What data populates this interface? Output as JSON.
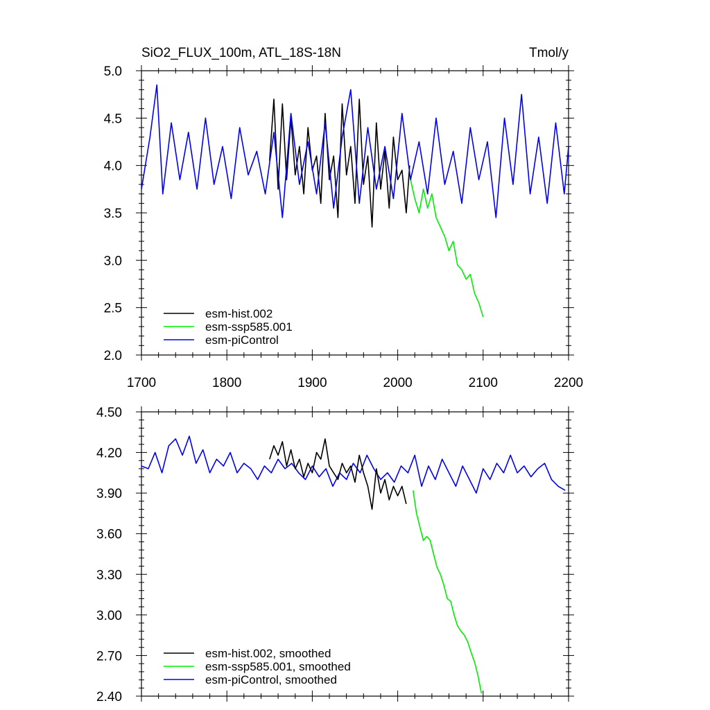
{
  "chart_data": [
    {
      "type": "line",
      "title": "SiO2_FLUX_100m, ATL_18S-18N",
      "units": "Tmol/y",
      "xlabel": "",
      "ylabel": "",
      "xlim": [
        1700,
        2200
      ],
      "ylim": [
        2.0,
        5.0
      ],
      "x_ticks": [
        1700,
        1800,
        1900,
        2000,
        2100,
        2200
      ],
      "x_tick_labels": [
        "1700",
        "1800",
        "1900",
        "2000",
        "2100",
        "2200"
      ],
      "y_ticks": [
        2.0,
        2.5,
        3.0,
        3.5,
        4.0,
        4.5,
        5.0
      ],
      "y_tick_labels": [
        "2.0",
        "2.5",
        "3.0",
        "3.5",
        "4.0",
        "4.5",
        "5.0"
      ],
      "legend_position": "bottom-left",
      "series": [
        {
          "name": "esm-hist.002",
          "color": "#000000",
          "x": [
            1850,
            1855,
            1860,
            1865,
            1870,
            1875,
            1880,
            1885,
            1890,
            1895,
            1900,
            1905,
            1910,
            1915,
            1920,
            1925,
            1930,
            1935,
            1940,
            1945,
            1950,
            1955,
            1960,
            1965,
            1970,
            1975,
            1980,
            1985,
            1990,
            1995,
            2000,
            2005,
            2010,
            2014
          ],
          "values": [
            4.05,
            4.7,
            3.75,
            4.65,
            3.85,
            4.5,
            3.9,
            4.2,
            3.7,
            4.4,
            3.95,
            4.1,
            3.6,
            4.55,
            3.85,
            4.1,
            3.45,
            4.65,
            3.9,
            4.2,
            3.6,
            4.7,
            3.8,
            4.1,
            3.35,
            4.45,
            3.75,
            4.15,
            3.55,
            4.3,
            3.85,
            3.95,
            3.5,
            4.0
          ]
        },
        {
          "name": "esm-ssp585.001",
          "color": "#00ee00",
          "x": [
            2015,
            2020,
            2025,
            2030,
            2035,
            2040,
            2045,
            2050,
            2055,
            2060,
            2065,
            2070,
            2075,
            2080,
            2085,
            2090,
            2095,
            2100
          ],
          "values": [
            3.85,
            3.65,
            3.5,
            3.75,
            3.55,
            3.7,
            3.45,
            3.35,
            3.25,
            3.1,
            3.2,
            2.95,
            2.9,
            2.8,
            2.85,
            2.65,
            2.55,
            2.4
          ]
        },
        {
          "name": "esm-piControl",
          "color": "#0000ee",
          "x": [
            1700,
            1710,
            1718,
            1725,
            1735,
            1745,
            1755,
            1765,
            1775,
            1785,
            1795,
            1805,
            1815,
            1825,
            1835,
            1845,
            1855,
            1865,
            1875,
            1885,
            1895,
            1905,
            1915,
            1925,
            1935,
            1945,
            1955,
            1965,
            1975,
            1985,
            1995,
            2005,
            2015,
            2025,
            2035,
            2045,
            2055,
            2065,
            2075,
            2085,
            2095,
            2105,
            2115,
            2125,
            2135,
            2145,
            2155,
            2165,
            2175,
            2185,
            2195,
            2200
          ],
          "values": [
            3.75,
            4.3,
            4.85,
            3.7,
            4.45,
            3.85,
            4.35,
            3.75,
            4.5,
            3.8,
            4.2,
            3.65,
            4.4,
            3.9,
            4.15,
            3.7,
            4.35,
            3.45,
            4.55,
            3.8,
            4.25,
            3.7,
            4.45,
            3.55,
            4.3,
            4.8,
            3.6,
            4.4,
            3.75,
            4.2,
            3.65,
            4.55,
            3.85,
            4.25,
            3.7,
            4.5,
            3.8,
            4.15,
            3.6,
            4.4,
            3.85,
            4.25,
            3.45,
            4.5,
            3.8,
            4.75,
            3.7,
            4.3,
            3.6,
            4.45,
            3.7,
            4.2
          ]
        }
      ]
    },
    {
      "type": "line",
      "title": "",
      "xlabel": "",
      "ylabel": "",
      "xlim": [
        1700,
        2200
      ],
      "ylim": [
        2.4,
        4.5
      ],
      "y_ticks": [
        2.4,
        2.7,
        3.0,
        3.3,
        3.6,
        3.9,
        4.2,
        4.5
      ],
      "y_tick_labels": [
        "2.40",
        "2.70",
        "3.00",
        "3.30",
        "3.60",
        "3.90",
        "4.20",
        "4.50"
      ],
      "legend_position": "bottom-left",
      "series": [
        {
          "name": "esm-hist.002, smoothed",
          "color": "#000000",
          "x": [
            1850,
            1855,
            1860,
            1865,
            1870,
            1875,
            1880,
            1885,
            1890,
            1895,
            1900,
            1905,
            1910,
            1915,
            1920,
            1925,
            1930,
            1935,
            1940,
            1945,
            1950,
            1955,
            1960,
            1965,
            1970,
            1975,
            1980,
            1985,
            1990,
            1995,
            2000,
            2005,
            2010
          ],
          "values": [
            4.15,
            4.25,
            4.18,
            4.28,
            4.1,
            4.22,
            4.08,
            4.15,
            4.02,
            4.12,
            4.05,
            4.2,
            4.15,
            4.3,
            4.1,
            4.05,
            4.0,
            4.12,
            4.05,
            4.1,
            3.98,
            4.18,
            4.05,
            3.95,
            3.78,
            4.08,
            3.9,
            4.0,
            3.85,
            3.95,
            3.88,
            3.95,
            3.82
          ]
        },
        {
          "name": "esm-ssp585.001, smoothed",
          "color": "#00ee00",
          "x": [
            2018,
            2022,
            2026,
            2030,
            2034,
            2038,
            2042,
            2046,
            2050,
            2054,
            2058,
            2062,
            2066,
            2070,
            2074,
            2078,
            2082,
            2086,
            2090,
            2094,
            2098
          ],
          "values": [
            3.92,
            3.75,
            3.65,
            3.55,
            3.58,
            3.55,
            3.45,
            3.35,
            3.3,
            3.22,
            3.12,
            3.1,
            3.0,
            2.92,
            2.88,
            2.85,
            2.8,
            2.72,
            2.65,
            2.55,
            2.42
          ]
        },
        {
          "name": "esm-piControl, smoothed",
          "color": "#0000ee",
          "x": [
            1700,
            1708,
            1716,
            1724,
            1732,
            1740,
            1748,
            1756,
            1764,
            1772,
            1780,
            1788,
            1796,
            1804,
            1812,
            1820,
            1828,
            1836,
            1844,
            1852,
            1860,
            1868,
            1876,
            1884,
            1892,
            1900,
            1908,
            1916,
            1924,
            1932,
            1940,
            1948,
            1956,
            1964,
            1972,
            1980,
            1988,
            1996,
            2004,
            2012,
            2020,
            2028,
            2036,
            2044,
            2052,
            2060,
            2068,
            2076,
            2084,
            2092,
            2100,
            2108,
            2116,
            2124,
            2132,
            2140,
            2148,
            2156,
            2164,
            2172,
            2180,
            2188,
            2196
          ],
          "values": [
            4.1,
            4.08,
            4.2,
            4.05,
            4.25,
            4.3,
            4.18,
            4.32,
            4.12,
            4.22,
            4.05,
            4.15,
            4.1,
            4.2,
            4.05,
            4.12,
            4.08,
            4.0,
            4.1,
            4.05,
            4.15,
            4.08,
            4.12,
            4.05,
            4.0,
            4.1,
            4.02,
            4.08,
            3.95,
            4.05,
            4.0,
            4.12,
            4.05,
            4.18,
            4.08,
            4.0,
            4.05,
            3.98,
            4.1,
            4.05,
            4.18,
            3.95,
            4.1,
            4.0,
            4.15,
            4.05,
            3.95,
            4.1,
            4.0,
            3.9,
            4.08,
            4.0,
            4.12,
            4.05,
            4.18,
            4.05,
            4.1,
            4.02,
            4.08,
            4.12,
            4.0,
            3.95,
            3.92
          ]
        }
      ]
    }
  ]
}
